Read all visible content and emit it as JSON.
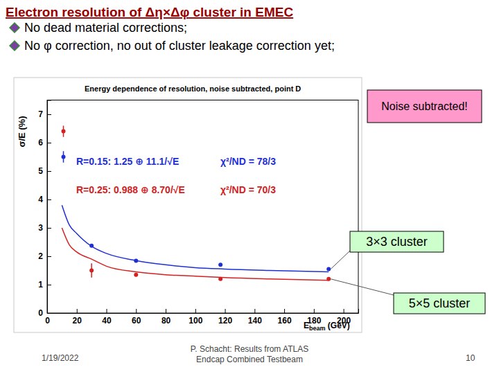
{
  "slide": {
    "title": "Electron resolution of Δη×Δφ cluster in EMEC",
    "bullets": [
      "No dead material corrections;",
      "No φ correction, no out of cluster leakage correction yet;"
    ],
    "footer_date": "1/19/2022",
    "footer_author": [
      "P. Schacht:  Results from ATLAS",
      "Endcap  Combined Testbeam"
    ],
    "page_number": "10"
  },
  "chart_data": {
    "type": "scatter",
    "title": "Energy dependence of resolution, noise subtracted, point D",
    "x_label": [
      "E",
      "beam",
      " (GeV)"
    ],
    "y_label": "σ/E (%)",
    "xlim": [
      0,
      210
    ],
    "xticks": [
      0,
      20,
      40,
      60,
      80,
      100,
      120,
      140,
      160,
      180,
      200
    ],
    "ylim": [
      0,
      7.5
    ],
    "yticks": [
      0,
      1,
      2,
      3,
      4,
      5,
      6,
      7
    ],
    "series": [
      {
        "name": "R=0.15:  1.25 ⊕ 11.1/√E",
        "fit_label": "χ²/ND = 78/3",
        "type": "scatter",
        "marker": "circle",
        "color": "#1f2fd6",
        "x": [
          11,
          30,
          60,
          117,
          190
        ],
        "values": [
          5.5,
          2.37,
          1.84,
          1.7,
          1.55
        ],
        "errors": [
          0.2,
          0.05,
          0.05,
          0.05,
          0.05
        ]
      },
      {
        "name": "R=0.25:  0.988 ⊕ 8.70/√E",
        "fit_label": "χ²/ND = 70/3",
        "type": "scatter",
        "marker": "circle",
        "color": "#d42020",
        "x": [
          11,
          30,
          60,
          117,
          190
        ],
        "values": [
          6.4,
          1.5,
          1.35,
          1.2,
          1.2
        ],
        "errors": [
          0.2,
          0.25,
          0.05,
          0.05,
          0.05
        ]
      },
      {
        "type": "line",
        "color": "#1f2fd6",
        "x": [
          10,
          15,
          20,
          30,
          40,
          60,
          80,
          100,
          120,
          150,
          190
        ],
        "values": [
          3.8,
          3.1,
          2.8,
          2.35,
          2.1,
          1.85,
          1.7,
          1.6,
          1.55,
          1.5,
          1.45
        ]
      },
      {
        "type": "line",
        "color": "#d42020",
        "x": [
          10,
          15,
          20,
          30,
          40,
          60,
          80,
          100,
          120,
          150,
          190
        ],
        "values": [
          3.0,
          2.4,
          2.15,
          1.9,
          1.65,
          1.45,
          1.35,
          1.3,
          1.25,
          1.2,
          1.15
        ]
      }
    ],
    "annotations": [
      {
        "text": "Noise subtracted!",
        "color": "#ff99cc"
      },
      {
        "text": "3×3 cluster",
        "color": "#ccffcc"
      },
      {
        "text": "5×5 cluster",
        "color": "#ccffcc"
      }
    ]
  }
}
